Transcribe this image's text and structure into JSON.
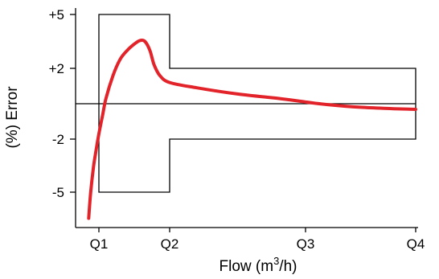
{
  "chart_data": {
    "type": "line",
    "xlabel": "Flow (m",
    "xlabel_sup": "3",
    "xlabel_end": "/h)",
    "ylabel": "(%) Error",
    "x_ticks": [
      {
        "value": 1,
        "label": "Q1"
      },
      {
        "value": 2,
        "label": "Q2"
      },
      {
        "value": 3,
        "label": "Q3"
      },
      {
        "value": 4,
        "label": "Q4"
      }
    ],
    "y_ticks": [
      {
        "value": 5,
        "label": "+5"
      },
      {
        "value": 2,
        "label": "+2"
      },
      {
        "value": -2,
        "label": "-2"
      },
      {
        "value": -5,
        "label": "-5"
      }
    ],
    "error_limits": {
      "low_flow": {
        "x_range": [
          1,
          2
        ],
        "upper": 5,
        "lower": -5
      },
      "high_flow": {
        "x_range": [
          2,
          4
        ],
        "upper": 2,
        "lower": -2
      }
    },
    "reference_line": 0,
    "series": [
      {
        "color": "#e3232a",
        "points": [
          [
            0.85,
            -6.5
          ],
          [
            0.88,
            -5.0
          ],
          [
            0.92,
            -3.6
          ],
          [
            0.96,
            -2.6
          ],
          [
            1.0,
            -1.7
          ],
          [
            1.05,
            -0.7
          ],
          [
            1.1,
            0.3
          ],
          [
            1.2,
            1.6
          ],
          [
            1.3,
            2.5
          ],
          [
            1.4,
            3.0
          ],
          [
            1.5,
            3.35
          ],
          [
            1.58,
            3.55
          ],
          [
            1.65,
            3.5
          ],
          [
            1.72,
            3.0
          ],
          [
            1.78,
            2.2
          ],
          [
            1.86,
            1.6
          ],
          [
            2.0,
            1.2
          ],
          [
            2.2,
            0.9
          ],
          [
            2.5,
            0.55
          ],
          [
            2.8,
            0.3
          ],
          [
            3.0,
            0.1
          ],
          [
            3.2,
            -0.05
          ],
          [
            3.5,
            -0.2
          ],
          [
            3.8,
            -0.28
          ],
          [
            4.0,
            -0.32
          ]
        ]
      }
    ],
    "xlim": [
      0.8,
      4.0
    ],
    "ylim": [
      -6.8,
      5.5
    ]
  }
}
